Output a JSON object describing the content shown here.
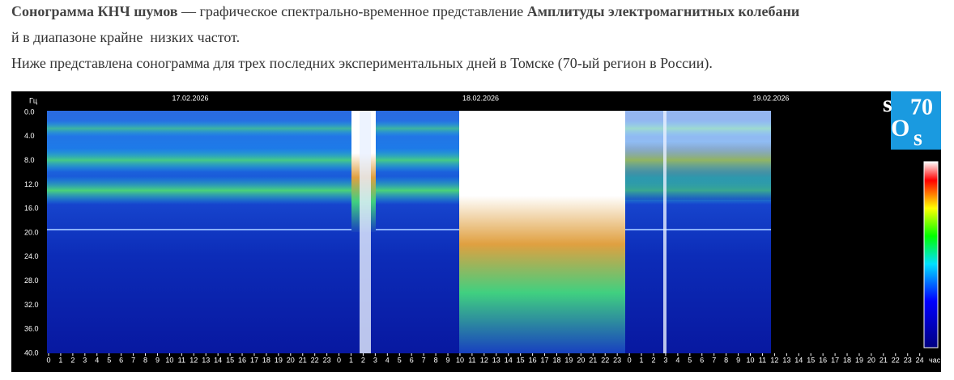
{
  "intro": {
    "line1_bold_a": "Сонограмма КНЧ шумов",
    "line1_text": " — графическое спектрально-временное представление ",
    "line1_bold_b": "Амплитуды электромагнитных колебани",
    "line2_text": "й в диапазоне крайне  низких частот.",
    "line3_text": "Ниже представлена сонограмма для трех последних экспериментальных дней в Томске (70-ый регион в России)."
  },
  "sonogram": {
    "y_unit": "Гц",
    "y_labels": [
      "0.0",
      "4.0",
      "8.0",
      "12.0",
      "16.0",
      "20.0",
      "24.0",
      "28.0",
      "32.0",
      "36.0",
      "40.0"
    ],
    "dates": [
      "17.02.2026",
      "18.02.2026",
      "19.02.2026"
    ],
    "hours": [
      0,
      1,
      2,
      3,
      4,
      5,
      6,
      7,
      8,
      9,
      10,
      11,
      12,
      13,
      14,
      15,
      16,
      17,
      18,
      19,
      20,
      21,
      22,
      23,
      0,
      1,
      2,
      3,
      4,
      5,
      6,
      7,
      8,
      9,
      10,
      11,
      12,
      13,
      14,
      15,
      16,
      17,
      18,
      19,
      20,
      21,
      22,
      23,
      0,
      1,
      2,
      3,
      4,
      5,
      6,
      7,
      8,
      9,
      10,
      11,
      12,
      13,
      14,
      15,
      16,
      17,
      18,
      19,
      20,
      21,
      22,
      23,
      24
    ],
    "x_unit": "час",
    "logo": {
      "s1": "s",
      "number": "70",
      "o": "O",
      "s2": "s"
    }
  }
}
